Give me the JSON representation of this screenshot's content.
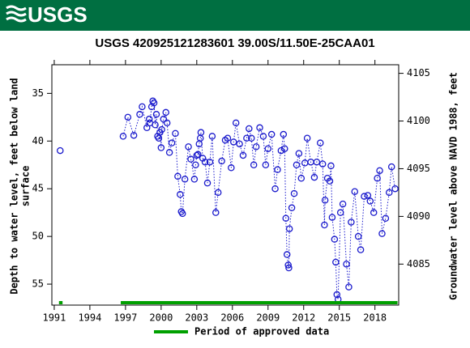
{
  "header": {
    "logo_text": "USGS"
  },
  "chart_data": {
    "type": "line",
    "title": "USGS 420925121283601 39.00S/11.50E-25CAA01",
    "ylabel_lines": [
      "Depth to water level, feet below land",
      "surface"
    ],
    "y2label": "Groundwater level above NAVD 1988, feet",
    "x": [
      1991.5,
      null,
      1996.8,
      1997.2,
      1997.7,
      1998.2,
      1998.4,
      1998.8,
      1999.0,
      1999.05,
      1999.2,
      1999.3,
      1999.4,
      1999.5,
      1999.6,
      1999.7,
      1999.8,
      1999.9,
      2000.0,
      2000.05,
      2000.2,
      2000.4,
      2000.5,
      2000.7,
      2000.9,
      2001.2,
      2001.4,
      2001.6,
      2001.7,
      2001.8,
      2002.0,
      2002.3,
      2002.5,
      2002.8,
      2002.9,
      2003.0,
      2003.1,
      2003.2,
      2003.3,
      2003.35,
      2003.5,
      2003.7,
      2003.9,
      2004.1,
      2004.3,
      2004.6,
      2004.8,
      2005.1,
      2005.4,
      2005.6,
      2005.9,
      2006.1,
      2006.3,
      2006.6,
      2006.9,
      2007.2,
      2007.4,
      2007.6,
      2007.8,
      2008.0,
      2008.3,
      2008.6,
      2008.8,
      2009.0,
      2009.3,
      2009.6,
      2009.8,
      2010.1,
      2010.3,
      2010.4,
      2010.5,
      2010.6,
      2010.7,
      2010.75,
      2010.8,
      2011.0,
      2011.2,
      2011.4,
      2011.6,
      2011.8,
      2012.1,
      2012.3,
      2012.6,
      2012.9,
      2013.1,
      2013.4,
      2013.6,
      2013.75,
      2013.8,
      2014.0,
      2014.2,
      2014.3,
      2014.4,
      2014.6,
      2014.7,
      2014.8,
      2014.9,
      2015.1,
      2015.3,
      2015.6,
      2015.8,
      2016.0,
      2016.3,
      2016.6,
      2016.8,
      2017.1,
      2017.4,
      2017.6,
      2017.9,
      2018.2,
      2018.4,
      2018.6,
      2018.9,
      2019.2,
      2019.4,
      2019.7
    ],
    "series": [
      {
        "name": "Depth to water level",
        "color": "#1a1acc",
        "values": [
          41.0,
          null,
          39.5,
          37.5,
          39.4,
          37.2,
          36.4,
          38.6,
          37.7,
          38.1,
          36.4,
          35.8,
          36.0,
          38.3,
          37.2,
          39.5,
          39.7,
          39.1,
          40.7,
          38.8,
          37.7,
          37.0,
          38.1,
          41.2,
          40.2,
          39.2,
          43.7,
          45.6,
          47.4,
          47.6,
          44.0,
          40.6,
          41.9,
          44.0,
          42.5,
          41.5,
          41.4,
          40.3,
          39.7,
          39.1,
          41.8,
          42.2,
          44.4,
          42.2,
          39.5,
          47.5,
          45.4,
          42.1,
          39.9,
          39.7,
          42.8,
          40.1,
          38.1,
          40.3,
          41.5,
          39.7,
          38.7,
          39.7,
          42.5,
          40.6,
          38.6,
          39.5,
          42.5,
          40.8,
          39.3,
          45.0,
          43.0,
          41.0,
          39.3,
          40.8,
          48.1,
          51.9,
          53.0,
          53.3,
          49.2,
          47.0,
          45.5,
          42.5,
          41.3,
          43.9,
          42.3,
          39.7,
          42.2,
          43.8,
          42.2,
          40.2,
          42.4,
          48.8,
          46.2,
          43.9,
          44.2,
          42.6,
          48.0,
          50.3,
          52.7,
          56.1,
          56.6,
          47.5,
          46.6,
          52.9,
          55.3,
          48.5,
          45.3,
          50.0,
          51.4,
          45.8,
          45.7,
          46.3,
          47.5,
          43.9,
          43.1,
          49.7,
          48.1,
          45.4,
          42.7,
          45.0
        ]
      }
    ],
    "approved": {
      "name": "Period of approved data",
      "color": "#00a000",
      "periods": [
        [
          1991.4,
          1991.7
        ],
        [
          1996.6,
          2019.9
        ]
      ]
    },
    "xlim": [
      1990.8,
      2020.0
    ],
    "xticks": [
      1991,
      1994,
      1997,
      2000,
      2003,
      2006,
      2009,
      2012,
      2015,
      2018
    ],
    "ylim": [
      32.0,
      57.2
    ],
    "y_inverted": true,
    "yticks": [
      35,
      40,
      45,
      50,
      55
    ],
    "y2lim": [
      4080.7,
      4105.9
    ],
    "y2ticks": [
      4085,
      4090,
      4095,
      4100,
      4105
    ]
  }
}
